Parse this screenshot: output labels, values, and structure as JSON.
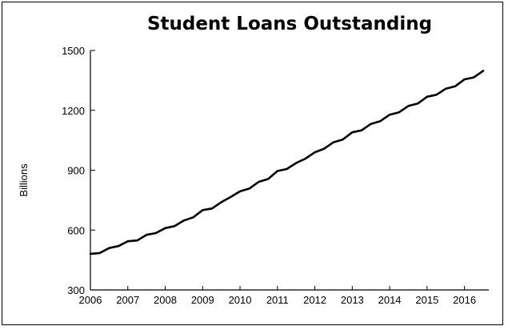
{
  "chart_data": {
    "type": "line",
    "title": "Student Loans Outstanding",
    "xlabel": "",
    "ylabel": "Billions",
    "xlim": [
      2006,
      2016.65
    ],
    "ylim": [
      300,
      1500
    ],
    "x_ticks": [
      "2006",
      "2007",
      "2008",
      "2009",
      "2010",
      "2011",
      "2012",
      "2013",
      "2014",
      "2015",
      "2016"
    ],
    "y_ticks": [
      "300",
      "600",
      "900",
      "1200",
      "1500"
    ],
    "grid": false,
    "legend": "none",
    "line_color": "#000000",
    "series": [
      {
        "values": [
          [
            2006.0,
            481
          ],
          [
            2006.25,
            485
          ],
          [
            2006.5,
            510
          ],
          [
            2006.75,
            520
          ],
          [
            2007.0,
            544
          ],
          [
            2007.25,
            548
          ],
          [
            2007.5,
            576
          ],
          [
            2007.75,
            585
          ],
          [
            2008.0,
            610
          ],
          [
            2008.25,
            620
          ],
          [
            2008.5,
            648
          ],
          [
            2008.75,
            664
          ],
          [
            2009.0,
            700
          ],
          [
            2009.25,
            708
          ],
          [
            2009.5,
            740
          ],
          [
            2009.75,
            766
          ],
          [
            2010.0,
            794
          ],
          [
            2010.25,
            808
          ],
          [
            2010.5,
            842
          ],
          [
            2010.75,
            856
          ],
          [
            2011.0,
            896
          ],
          [
            2011.25,
            906
          ],
          [
            2011.5,
            936
          ],
          [
            2011.75,
            958
          ],
          [
            2012.0,
            990
          ],
          [
            2012.25,
            1008
          ],
          [
            2012.5,
            1040
          ],
          [
            2012.75,
            1054
          ],
          [
            2013.0,
            1090
          ],
          [
            2013.25,
            1100
          ],
          [
            2013.5,
            1132
          ],
          [
            2013.75,
            1146
          ],
          [
            2014.0,
            1178
          ],
          [
            2014.25,
            1190
          ],
          [
            2014.5,
            1222
          ],
          [
            2014.75,
            1234
          ],
          [
            2015.0,
            1268
          ],
          [
            2015.25,
            1278
          ],
          [
            2015.5,
            1308
          ],
          [
            2015.75,
            1320
          ],
          [
            2016.0,
            1355
          ],
          [
            2016.25,
            1365
          ],
          [
            2016.5,
            1398
          ]
        ]
      }
    ]
  }
}
